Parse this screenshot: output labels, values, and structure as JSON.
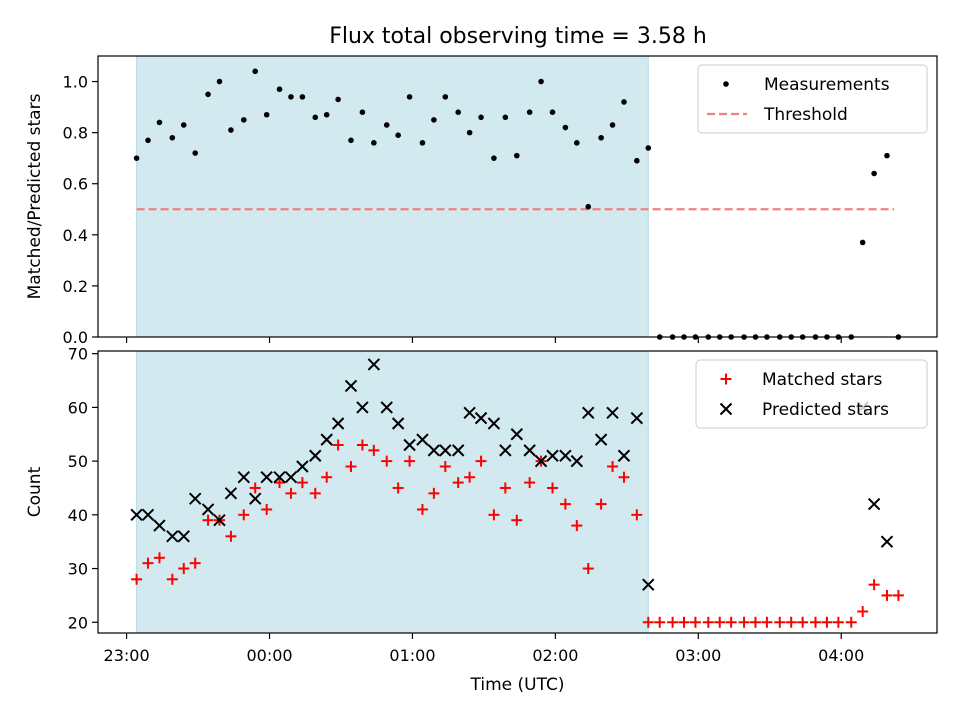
{
  "chart_data": [
    {
      "type": "scatter",
      "title": "Flux total observing time = 3.58 h",
      "ylabel": "Matched/Predicted stars",
      "ylim": [
        0,
        1.1
      ],
      "yticks": [
        "0.0",
        "0.2",
        "0.4",
        "0.6",
        "0.8",
        "1.0"
      ],
      "ytick_values": [
        0,
        0.2,
        0.4,
        0.6,
        0.8,
        1.0
      ],
      "xlim_hours": [
        22.8,
        28.67
      ],
      "highlight_span_hours": [
        23.07,
        26.65
      ],
      "highlight_color": "#d2e9f0",
      "threshold": {
        "value": 0.5,
        "x_start": 23.07,
        "x_end": 28.37,
        "color": "#f08080"
      },
      "legend": {
        "position": "upper right",
        "entries": [
          "Measurements",
          "Threshold"
        ]
      },
      "series": [
        {
          "name": "Measurements",
          "color": "#000000",
          "x": [
            23.07,
            23.15,
            23.23,
            23.32,
            23.4,
            23.48,
            23.57,
            23.65,
            23.73,
            23.82,
            23.9,
            23.98,
            24.07,
            24.15,
            24.23,
            24.32,
            24.4,
            24.48,
            24.57,
            24.65,
            24.73,
            24.82,
            24.9,
            24.98,
            25.07,
            25.15,
            25.23,
            25.32,
            25.4,
            25.48,
            25.57,
            25.65,
            25.73,
            25.82,
            25.9,
            25.98,
            26.07,
            26.15,
            26.23,
            26.32,
            26.4,
            26.48,
            26.57,
            26.65,
            26.73,
            26.82,
            26.9,
            26.98,
            27.07,
            27.15,
            27.23,
            27.32,
            27.4,
            27.48,
            27.57,
            27.65,
            27.73,
            27.82,
            27.9,
            27.98,
            28.07,
            28.15,
            28.23,
            28.32,
            28.4
          ],
          "y": [
            0.7,
            0.77,
            0.84,
            0.78,
            0.83,
            0.72,
            0.95,
            1.0,
            0.81,
            0.85,
            1.04,
            0.87,
            0.97,
            0.94,
            0.94,
            0.86,
            0.87,
            0.93,
            0.77,
            0.88,
            0.76,
            0.83,
            0.79,
            0.94,
            0.76,
            0.85,
            0.94,
            0.88,
            0.8,
            0.86,
            0.7,
            0.86,
            0.71,
            0.88,
            1.0,
            0.88,
            0.82,
            0.76,
            0.51,
            0.78,
            0.83,
            0.92,
            0.69,
            0.74,
            0.0,
            0.0,
            0.0,
            0.0,
            0.0,
            0.0,
            0.0,
            0.0,
            0.0,
            0.0,
            0.0,
            0.0,
            0.0,
            0.0,
            0.0,
            0.0,
            0.0,
            0.37,
            0.64,
            0.71,
            0.0
          ]
        }
      ]
    },
    {
      "type": "scatter",
      "xlabel": "Time (UTC)",
      "ylabel": "Count",
      "ylim": [
        18,
        70.5
      ],
      "yticks": [
        "20",
        "30",
        "40",
        "50",
        "60",
        "70"
      ],
      "ytick_values": [
        20,
        30,
        40,
        50,
        60,
        70
      ],
      "xticks": [
        "23:00",
        "00:00",
        "01:00",
        "02:00",
        "03:00",
        "04:00"
      ],
      "xtick_values_hours": [
        23,
        24,
        25,
        26,
        27,
        28
      ],
      "xlim_hours": [
        22.8,
        28.67
      ],
      "highlight_span_hours": [
        23.07,
        26.65
      ],
      "legend": {
        "position": "upper right",
        "entries": [
          "Matched stars",
          "Predicted stars"
        ]
      },
      "x": [
        23.07,
        23.15,
        23.23,
        23.32,
        23.4,
        23.48,
        23.57,
        23.65,
        23.73,
        23.82,
        23.9,
        23.98,
        24.07,
        24.15,
        24.23,
        24.32,
        24.4,
        24.48,
        24.57,
        24.65,
        24.73,
        24.82,
        24.9,
        24.98,
        25.07,
        25.15,
        25.23,
        25.32,
        25.4,
        25.48,
        25.57,
        25.65,
        25.73,
        25.82,
        25.9,
        25.98,
        26.07,
        26.15,
        26.23,
        26.32,
        26.4,
        26.48,
        26.57,
        26.65,
        26.73,
        26.82,
        26.9,
        26.98,
        27.07,
        27.15,
        27.23,
        27.32,
        27.4,
        27.48,
        27.57,
        27.65,
        27.73,
        27.82,
        27.9,
        27.98,
        28.07,
        28.15,
        28.23,
        28.32,
        28.4
      ],
      "series": [
        {
          "name": "Matched stars",
          "marker": "plus",
          "color": "#ff0000",
          "values": [
            28,
            31,
            32,
            28,
            30,
            31,
            39,
            39,
            36,
            40,
            45,
            41,
            46,
            44,
            46,
            44,
            47,
            53,
            49,
            53,
            52,
            50,
            45,
            50,
            41,
            44,
            49,
            46,
            47,
            50,
            40,
            45,
            39,
            46,
            50,
            45,
            42,
            38,
            30,
            42,
            49,
            47,
            40,
            20,
            20,
            20,
            20,
            20,
            20,
            20,
            20,
            20,
            20,
            20,
            20,
            20,
            20,
            20,
            20,
            20,
            20,
            22,
            27,
            25,
            25
          ]
        },
        {
          "name": "Predicted stars",
          "marker": "x",
          "color": "#000000",
          "values": [
            40,
            40,
            38,
            36,
            36,
            43,
            41,
            39,
            44,
            47,
            43,
            47,
            47,
            47,
            49,
            51,
            54,
            57,
            64,
            60,
            68,
            60,
            57,
            53,
            54,
            52,
            52,
            52,
            59,
            58,
            57,
            52,
            55,
            52,
            50,
            51,
            51,
            50,
            59,
            54,
            59,
            51,
            58,
            27,
            null,
            null,
            null,
            null,
            null,
            null,
            null,
            null,
            null,
            null,
            null,
            null,
            null,
            null,
            null,
            null,
            null,
            60,
            42,
            35,
            null
          ]
        }
      ]
    }
  ]
}
